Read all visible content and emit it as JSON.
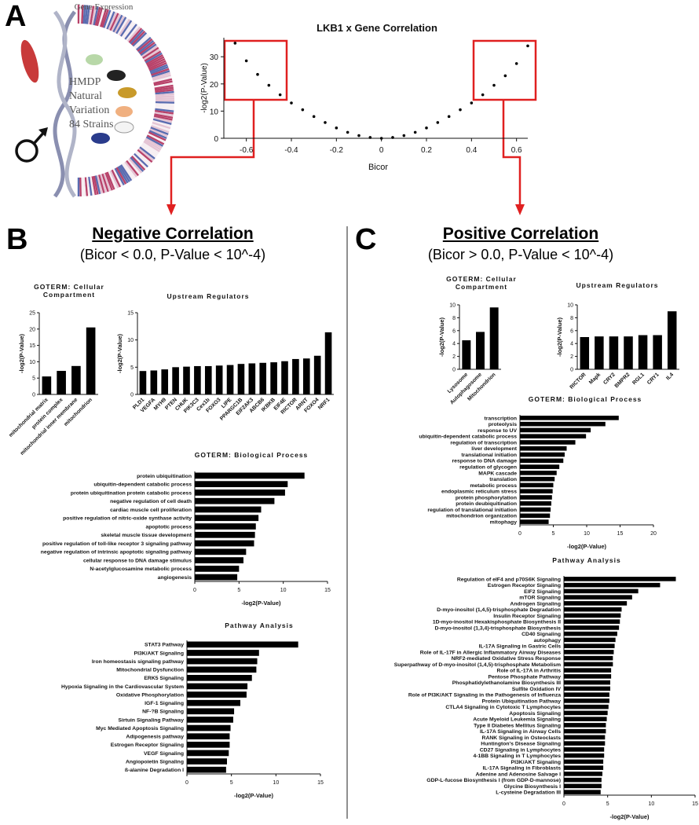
{
  "panels": {
    "A": {
      "letter": "A",
      "heading": "Gene Expression",
      "hmdp": [
        "HMDP",
        "Natural",
        "Variation",
        "84 Strains"
      ]
    },
    "B": {
      "letter": "B",
      "title": "Negative Correlation",
      "subtitle": "(Bicor < 0.0,  P-Value < 10^-4)"
    },
    "C": {
      "letter": "C",
      "title": "Positive Correlation",
      "subtitle": "(Bicor > 0.0,  P-Value < 10^-4)"
    }
  },
  "chart_data": [
    {
      "type": "scatter",
      "title": "LKB1 x Gene Correlation",
      "xlabel": "Bicor",
      "ylabel": "-log2(P-Value)",
      "color": "#000000",
      "x": [
        -0.65,
        -0.6,
        -0.55,
        -0.5,
        -0.45,
        -0.4,
        -0.35,
        -0.3,
        -0.25,
        -0.2,
        -0.15,
        -0.1,
        -0.05,
        0,
        0.05,
        0.1,
        0.15,
        0.2,
        0.25,
        0.3,
        0.35,
        0.4,
        0.45,
        0.5,
        0.55,
        0.6,
        0.65
      ],
      "y": [
        35,
        28.5,
        23.5,
        19.5,
        16,
        13,
        10.5,
        8,
        5.8,
        3.8,
        2.2,
        1,
        0.3,
        0,
        0.3,
        1,
        2.2,
        3.8,
        5.8,
        8,
        10.5,
        13,
        16,
        19.5,
        23,
        27.5,
        34
      ],
      "xlim": [
        -0.7,
        0.65
      ],
      "xticks": [
        -0.6,
        -0.4,
        -0.2,
        0,
        0.2,
        0.4,
        0.6
      ],
      "ylim": [
        0,
        37
      ],
      "yticks": [
        0,
        10,
        20,
        30
      ]
    },
    {
      "type": "bar",
      "title": "GOTERM: Cellular Compartment",
      "ylabel": "-log2(P-Value)",
      "color": "#000000",
      "categories": [
        "mitochondrial matrix",
        "protein complex",
        "mitochondrial inner membrane",
        "mitochondrion"
      ],
      "values": [
        5.5,
        7.2,
        8.7,
        20.5
      ],
      "ylim": [
        0,
        25
      ],
      "yticks": [
        0,
        5,
        10,
        15,
        20,
        25
      ]
    },
    {
      "type": "bar",
      "title": "Upstream Regulators",
      "ylabel": "-log2(P-Value)",
      "color": "#000000",
      "categories": [
        "PLD1",
        "VEGFA",
        "MYH9",
        "PTEN",
        "CHUK",
        "PIK3C3",
        "Cex1b",
        "FOXO3",
        "LIPE",
        "PPARGC1B",
        "EIF2AK3",
        "ABCB6",
        "IKBKB",
        "EIF4E",
        "RICTOR",
        "ARNT",
        "FOXO4",
        "NRF1"
      ],
      "values": [
        4.3,
        4.4,
        4.6,
        5.0,
        5.1,
        5.2,
        5.2,
        5.3,
        5.4,
        5.6,
        5.7,
        5.8,
        5.9,
        6.1,
        6.5,
        6.6,
        7.1,
        11.4
      ],
      "ylim": [
        0,
        15
      ],
      "yticks": [
        0,
        5,
        10,
        15
      ]
    },
    {
      "type": "barh",
      "title": "GOTERM: Biological Process",
      "xlabel": "-log2(P-Value)",
      "color": "#000000",
      "categories": [
        "protein ubiquitination",
        "ubiquitin-dependent catabolic process",
        "protein ubiquitination protein catabolic process",
        "negative regulation of cell death",
        "cardiac muscle cell proliferation",
        "positive regulation of nitric-oxide synthase activity",
        "apoptotic process",
        "skeletal muscle tissue development",
        "positive regulation of toll-like receptor 3 signaling pathway",
        "negative regulation of intrinsic apoptotic signaling pathway",
        "cellular response to DNA damage stimulus",
        "N-acetylglucosamine metabolic process",
        "angiogenesis"
      ],
      "values": [
        12.4,
        10.5,
        10.2,
        9.0,
        7.5,
        7.2,
        6.9,
        6.8,
        6.7,
        5.8,
        5.5,
        5.0,
        4.8
      ],
      "xlim": [
        0,
        15
      ],
      "xticks": [
        0,
        5,
        10,
        15
      ]
    },
    {
      "type": "barh",
      "title": "Pathway Analysis",
      "xlabel": "-log2(P-Value)",
      "color": "#000000",
      "categories": [
        "STAT3 Pathway",
        "PI3K/AKT Signaling",
        "Iron homeostasis signaling pathway",
        "Mitochondrial Dysfunction",
        "ERK5 Signaling",
        "Hypoxia Signaling in the Cardiovascular System",
        "Oxidative Phosphorylation",
        "IGF-1 Signaling",
        "NF-?B Signaling",
        "Sirtuin Signaling Pathway",
        "Myc Mediated Apoptosis Signaling",
        "Adipogenesis pathway",
        "Estrogen Receptor Signaling",
        "VEGF Signaling",
        "Angiopoietin Signaling",
        "ß-alanine Degradation I"
      ],
      "values": [
        12.5,
        8.1,
        7.9,
        7.8,
        7.3,
        6.8,
        6.7,
        6.0,
        5.3,
        5.2,
        4.9,
        4.8,
        4.8,
        4.7,
        4.5,
        4.4
      ],
      "xlim": [
        0,
        15
      ],
      "xticks": [
        0,
        5,
        10,
        15
      ]
    },
    {
      "type": "bar",
      "title": "GOTERM: Cellular Compartment",
      "ylabel": "-log2(P-Value)",
      "color": "#000000",
      "categories": [
        "Lysosome",
        "Autophagosome",
        "Mitochondrion"
      ],
      "values": [
        4.5,
        5.8,
        9.6
      ],
      "ylim": [
        0,
        10
      ],
      "yticks": [
        0,
        2,
        4,
        6,
        8,
        10
      ]
    },
    {
      "type": "bar",
      "title": "Upstream Regulators",
      "ylabel": "-log2(P-Value)",
      "color": "#000000",
      "categories": [
        "RICTOR",
        "Mapk",
        "CRY2",
        "BMPR2",
        "RGL1",
        "CRY1",
        "IL4"
      ],
      "values": [
        5.0,
        5.1,
        5.1,
        5.1,
        5.3,
        5.3,
        9.0
      ],
      "ylim": [
        0,
        10
      ],
      "yticks": [
        0,
        2,
        4,
        6,
        8,
        10
      ]
    },
    {
      "type": "barh",
      "title": "GOTERM: Biological Process",
      "xlabel": "-log2(P-Value)",
      "color": "#000000",
      "categories": [
        "transcription",
        "proteolysis",
        "response to UV",
        "ubiquitin-dependent catabolic process",
        "regulation of transcription",
        "liver development",
        "translational initiation",
        "response to DNA damage",
        "regulation of glycogen",
        "MAPK cascade",
        "translation",
        "metabolic process",
        "endoplasmic reticulum stress",
        "protein phosphorylation",
        "protein deubiquitination",
        "regulation of translational initiation",
        "mitochondrion organization",
        "mitophagy"
      ],
      "values": [
        14.8,
        12.8,
        10.6,
        9.9,
        8.3,
        7.0,
        6.7,
        6.5,
        5.9,
        5.5,
        5.2,
        5.0,
        4.9,
        4.8,
        4.7,
        4.6,
        4.5,
        4.3
      ],
      "xlim": [
        0,
        20
      ],
      "xticks": [
        0,
        5,
        10,
        15,
        20
      ]
    },
    {
      "type": "barh",
      "title": "Pathway Analysis",
      "xlabel": "-log2(P-Value)",
      "color": "#000000",
      "categories": [
        "Regulation of eIF4 and p70S6K Signaling",
        "Estrogen Receptor Signaling",
        "EIF2 Signaling",
        "mTOR Signaling",
        "Androgen Signaling",
        "D-myo-inositol (1,4,5)-trisphosphate Degradation",
        "Insulin Receptor Signaling",
        "1D-myo-inositol Hexakisphosphate Biosynthesis II",
        "D-myo-inositol (1,3,4)-trisphosphate Biosynthesis",
        "CD40 Signaling",
        "autophagy",
        "IL-17A Signaling in Gastric Cells",
        "Role of IL-17F in Allergic Inflammatory Airway Diseases",
        "NRF2-mediated Oxidative Stress Response",
        "Superpathway of D-myo-inositol (1,4,5)-trisphosphate Metabolism",
        "Role of IL-17A in Arthritis",
        "Pentose Phosphate Pathway",
        "Phosphatidylethanolamine Biosynthesis III",
        "Sulfite Oxidation IV",
        "Role of PI3K/AKT Signaling in the Pathogenesis of Influenza",
        "Protein Ubiquitination Pathway",
        "CTLA4 Signaling in Cytotoxic T Lymphocytes",
        "Apoptosis Signaling",
        "Acute Myeloid Leukemia Signaling",
        "Type II Diabetes Mellitus Signaling",
        "IL-17A Signaling in Airway Cells",
        "RANK Signaling in Osteoclasts",
        "Huntington's Disease Signaling",
        "CD27 Signaling in Lymphocytes",
        "4-1BB Signaling in T Lymphocytes",
        "PI3K/AKT Signaling",
        "IL-17A Signaling in Fibroblasts",
        "Adenine and Adenosine Salvage I",
        "GDP-L-fucose Biosynthesis I (from GDP-D-mannose)",
        "Glycine Biosynthesis I",
        "L-cysteine Degradation III"
      ],
      "values": [
        12.8,
        11.0,
        8.5,
        7.8,
        7.2,
        6.6,
        6.5,
        6.4,
        6.3,
        6.1,
        5.9,
        5.8,
        5.7,
        5.6,
        5.6,
        5.4,
        5.4,
        5.3,
        5.3,
        5.2,
        5.2,
        5.1,
        5.0,
        4.9,
        4.8,
        4.8,
        4.7,
        4.7,
        4.6,
        4.6,
        4.5,
        4.5,
        4.4,
        4.3,
        4.3,
        4.2
      ],
      "xlim": [
        0,
        15
      ],
      "xticks": [
        0,
        5,
        10,
        15
      ]
    }
  ]
}
